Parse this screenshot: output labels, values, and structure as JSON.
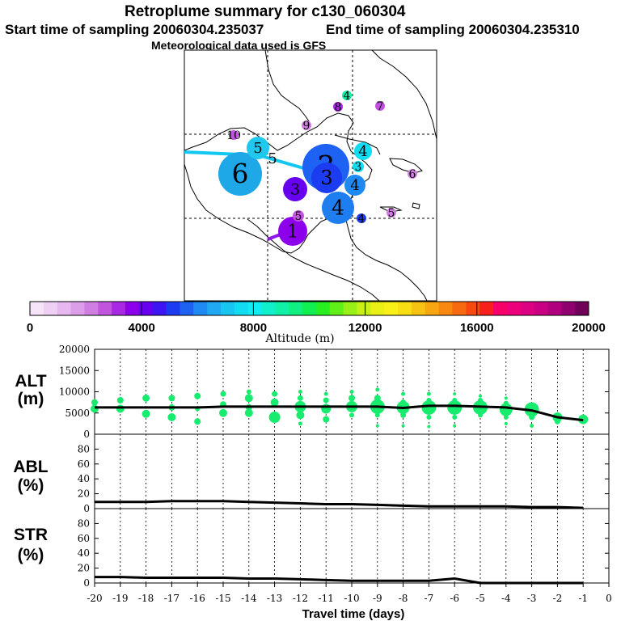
{
  "header": {
    "title": "Retroplume summary for c130_060304",
    "start_time": "Start time of sampling 20060304.235037",
    "end_time": "End time of sampling 20060304.235310",
    "met_data": "Meteorological data used is GFS"
  },
  "colorbar": {
    "label": "Altitude (m)",
    "ticks": [
      0,
      4000,
      8000,
      12000,
      16000,
      20000
    ],
    "colors": [
      "#f6e4f8",
      "#efd0f4",
      "#e6b8ef",
      "#dc9ee9",
      "#d07ee2",
      "#c155dd",
      "#a828e3",
      "#8d00ec",
      "#6800f0",
      "#3d14f2",
      "#1b3cf0",
      "#1e62f3",
      "#1f8af3",
      "#20a8f2",
      "#18c4f0",
      "#12dcf1",
      "#10ecf1",
      "#10f0cc",
      "#10f0a6",
      "#10f080",
      "#10f050",
      "#28f020",
      "#60f018",
      "#98f016",
      "#c8f016",
      "#eaf016",
      "#f8f016",
      "#f8de12",
      "#f8c212",
      "#f8a612",
      "#f88810",
      "#f86a10",
      "#f84a10",
      "#f8201a",
      "#f8006a",
      "#ee007a",
      "#de0082",
      "#ca0084",
      "#b00080",
      "#90006e",
      "#700058"
    ]
  },
  "map_clusters": [
    {
      "label": "6",
      "color": "#1fa8e8",
      "size": 54
    },
    {
      "label": "3",
      "color": "#1e62f3",
      "size": 58
    },
    {
      "label": "3",
      "color": "#1b3cf0",
      "size": 38
    },
    {
      "label": "4",
      "color": "#1e7ef0",
      "size": 40
    },
    {
      "label": "4",
      "color": "#1e88f3",
      "size": 26
    },
    {
      "label": "1",
      "color": "#8d00ec",
      "size": 36
    },
    {
      "label": "3",
      "color": "#6800f0",
      "size": 30
    },
    {
      "label": "5",
      "color": "#20c8ee",
      "size": 28
    },
    {
      "label": "4",
      "color": "#12dcf1",
      "size": 22
    },
    {
      "label": "3",
      "color": "#12dcf1",
      "size": 14
    },
    {
      "label": "5",
      "color": "#000000",
      "size": 22
    },
    {
      "label": "10",
      "color": "#c050e0",
      "size": 12
    },
    {
      "label": "9",
      "color": "#d07ee2",
      "size": 12
    },
    {
      "label": "8",
      "color": "#a828e3",
      "size": 12
    },
    {
      "label": "7",
      "color": "#c050e0",
      "size": 12
    },
    {
      "label": "4",
      "color": "#10f0a6",
      "size": 12
    },
    {
      "label": "6",
      "color": "#d07ee2",
      "size": 12
    },
    {
      "label": "5",
      "color": "#d07ee2",
      "size": 12
    },
    {
      "label": "4",
      "color": "#1e3cf0",
      "size": 12
    },
    {
      "label": "5",
      "color": "#c155dd",
      "size": 14
    }
  ],
  "chart_data": [
    {
      "type": "scatter",
      "panel": "ALT",
      "ylabel": "ALT (m)",
      "ylim": [
        0,
        20000
      ],
      "yticks": [
        0,
        5000,
        10000,
        15000,
        20000
      ],
      "xlim": [
        -20,
        0
      ],
      "line": {
        "x": [
          -20,
          -19,
          -18,
          -17,
          -16,
          -15,
          -14,
          -13,
          -12,
          -11,
          -10,
          -9,
          -8,
          -7,
          -6,
          -5,
          -4,
          -3,
          -2,
          -1
        ],
        "y": [
          6300,
          6300,
          6300,
          6300,
          6300,
          6500,
          6500,
          6500,
          6500,
          6500,
          6500,
          6500,
          6200,
          6700,
          6700,
          6500,
          6300,
          5600,
          4000,
          3300
        ]
      },
      "points": [
        {
          "x": -20,
          "y": 7500,
          "s": 8
        },
        {
          "x": -20,
          "y": 6000,
          "s": 10
        },
        {
          "x": -19,
          "y": 8000,
          "s": 8
        },
        {
          "x": -19,
          "y": 6000,
          "s": 10
        },
        {
          "x": -18,
          "y": 8500,
          "s": 9
        },
        {
          "x": -18,
          "y": 4800,
          "s": 10
        },
        {
          "x": -17,
          "y": 8500,
          "s": 8
        },
        {
          "x": -17,
          "y": 6300,
          "s": 8
        },
        {
          "x": -17,
          "y": 4000,
          "s": 10
        },
        {
          "x": -16,
          "y": 9000,
          "s": 8
        },
        {
          "x": -16,
          "y": 6000,
          "s": 6
        },
        {
          "x": -16,
          "y": 3000,
          "s": 8
        },
        {
          "x": -15,
          "y": 9500,
          "s": 7
        },
        {
          "x": -15,
          "y": 7000,
          "s": 8
        },
        {
          "x": -15,
          "y": 5000,
          "s": 10
        },
        {
          "x": -14,
          "y": 10000,
          "s": 6
        },
        {
          "x": -14,
          "y": 8500,
          "s": 10
        },
        {
          "x": -14,
          "y": 6300,
          "s": 8
        },
        {
          "x": -14,
          "y": 5000,
          "s": 10
        },
        {
          "x": -13,
          "y": 9500,
          "s": 7
        },
        {
          "x": -13,
          "y": 7500,
          "s": 10
        },
        {
          "x": -13,
          "y": 4000,
          "s": 14
        },
        {
          "x": -12,
          "y": 10000,
          "s": 5
        },
        {
          "x": -12,
          "y": 8500,
          "s": 7
        },
        {
          "x": -12,
          "y": 6500,
          "s": 14
        },
        {
          "x": -12,
          "y": 4500,
          "s": 10
        },
        {
          "x": -12,
          "y": 2500,
          "s": 5
        },
        {
          "x": -11,
          "y": 9500,
          "s": 5
        },
        {
          "x": -11,
          "y": 8000,
          "s": 7
        },
        {
          "x": -11,
          "y": 6000,
          "s": 12
        },
        {
          "x": -11,
          "y": 3500,
          "s": 8
        },
        {
          "x": -10,
          "y": 10000,
          "s": 5
        },
        {
          "x": -10,
          "y": 8500,
          "s": 8
        },
        {
          "x": -10,
          "y": 6500,
          "s": 14
        },
        {
          "x": -10,
          "y": 4500,
          "s": 6
        },
        {
          "x": -9,
          "y": 10500,
          "s": 5
        },
        {
          "x": -9,
          "y": 8500,
          "s": 8
        },
        {
          "x": -9,
          "y": 6500,
          "s": 18
        },
        {
          "x": -9,
          "y": 4500,
          "s": 6
        },
        {
          "x": -9,
          "y": 2000,
          "s": 4
        },
        {
          "x": -8,
          "y": 9500,
          "s": 5
        },
        {
          "x": -8,
          "y": 7500,
          "s": 7
        },
        {
          "x": -8,
          "y": 6300,
          "s": 16
        },
        {
          "x": -8,
          "y": 4500,
          "s": 7
        },
        {
          "x": -8,
          "y": 2000,
          "s": 4
        },
        {
          "x": -7,
          "y": 9500,
          "s": 5
        },
        {
          "x": -7,
          "y": 8000,
          "s": 6
        },
        {
          "x": -7,
          "y": 6300,
          "s": 18
        },
        {
          "x": -7,
          "y": 4000,
          "s": 6
        },
        {
          "x": -7,
          "y": 1800,
          "s": 4
        },
        {
          "x": -6,
          "y": 9500,
          "s": 4
        },
        {
          "x": -6,
          "y": 8000,
          "s": 6
        },
        {
          "x": -6,
          "y": 6300,
          "s": 18
        },
        {
          "x": -6,
          "y": 4000,
          "s": 6
        },
        {
          "x": -6,
          "y": 2000,
          "s": 4
        },
        {
          "x": -5,
          "y": 9000,
          "s": 4
        },
        {
          "x": -5,
          "y": 8000,
          "s": 6
        },
        {
          "x": -5,
          "y": 6300,
          "s": 18
        },
        {
          "x": -5,
          "y": 4500,
          "s": 6
        },
        {
          "x": -4,
          "y": 8500,
          "s": 4
        },
        {
          "x": -4,
          "y": 7300,
          "s": 6
        },
        {
          "x": -4,
          "y": 5800,
          "s": 16
        },
        {
          "x": -4,
          "y": 4000,
          "s": 6
        },
        {
          "x": -4,
          "y": 2500,
          "s": 4
        },
        {
          "x": -3,
          "y": 5800,
          "s": 18
        },
        {
          "x": -3,
          "y": 4000,
          "s": 7
        },
        {
          "x": -3,
          "y": 2000,
          "s": 5
        },
        {
          "x": -2,
          "y": 4000,
          "s": 12
        },
        {
          "x": -2,
          "y": 3000,
          "s": 7
        },
        {
          "x": -1,
          "y": 3500,
          "s": 12
        }
      ]
    },
    {
      "type": "line",
      "panel": "ABL",
      "ylabel": "ABL (%)",
      "ylim": [
        0,
        100
      ],
      "yticks": [
        0,
        20,
        40,
        60,
        80
      ],
      "xlabel": "Travel time (days)",
      "x": [
        -20,
        -19,
        -18,
        -17,
        -16,
        -15,
        -14,
        -13,
        -12,
        -11,
        -10,
        -9,
        -8,
        -7,
        -6,
        -5,
        -4,
        -3,
        -2,
        -1
      ],
      "y": [
        9,
        9,
        9,
        10,
        10,
        10,
        9,
        8,
        7,
        6,
        6,
        5,
        4,
        3,
        3,
        3,
        3,
        2,
        2,
        1
      ]
    },
    {
      "type": "line",
      "panel": "STR",
      "ylabel": "STR (%)",
      "ylim": [
        0,
        100
      ],
      "yticks": [
        0,
        20,
        40,
        60,
        80
      ],
      "x": [
        -20,
        -19,
        -18,
        -17,
        -16,
        -15,
        -14,
        -13,
        -12,
        -11,
        -10,
        -9,
        -8,
        -7,
        -6,
        -5.5,
        -5,
        -4,
        -3,
        -2,
        -1
      ],
      "y": [
        8,
        8,
        7,
        7,
        7,
        7,
        6,
        6,
        5,
        4,
        3,
        3,
        3,
        3,
        6,
        3,
        0,
        0,
        0,
        0,
        0
      ],
      "xticks": [
        -20,
        -19,
        -18,
        -17,
        -16,
        -15,
        -14,
        -13,
        -12,
        -11,
        -10,
        -9,
        -8,
        -7,
        -6,
        -5,
        -4,
        -3,
        -2,
        -1,
        0
      ]
    }
  ]
}
